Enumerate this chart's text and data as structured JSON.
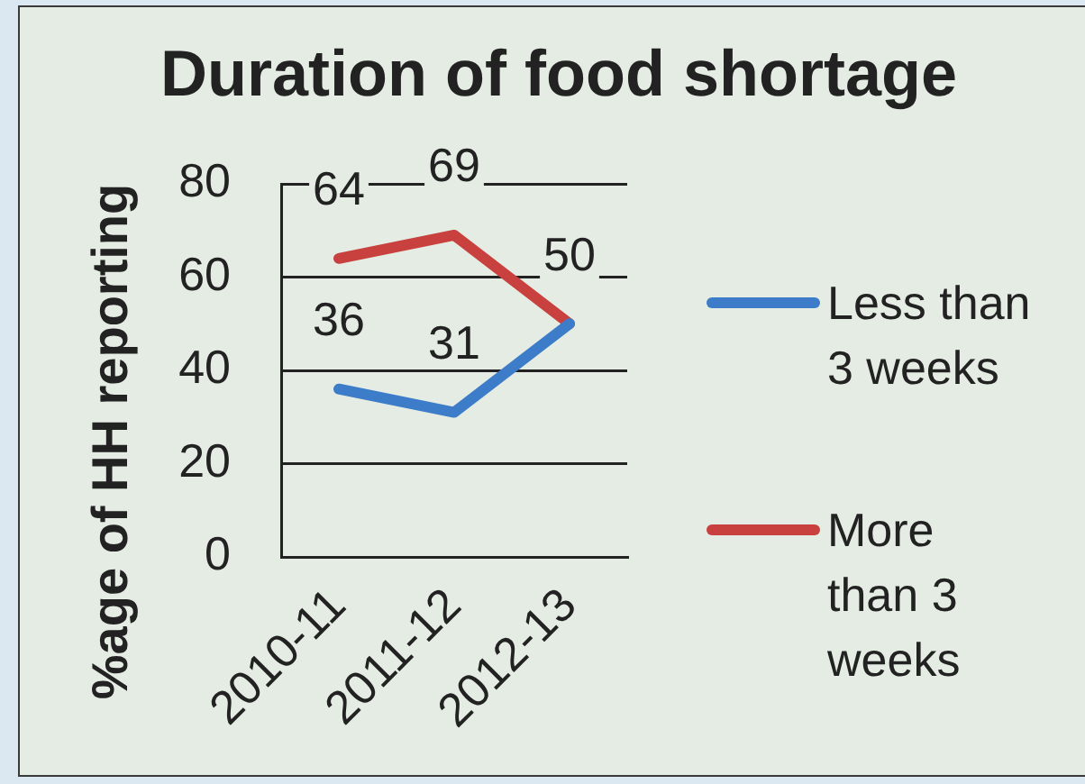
{
  "chart_data": {
    "type": "line",
    "title": "Duration of food shortage",
    "ylabel": "%age of HH reporting",
    "categories": [
      "2010-11",
      "2011-12",
      "2012-13"
    ],
    "series": [
      {
        "name": "Less than 3 weeks",
        "color": "#3d7cc9",
        "values": [
          36,
          31,
          50
        ],
        "value_labels": [
          "36",
          "31",
          null
        ]
      },
      {
        "name": "More than 3 weeks",
        "color": "#c8413e",
        "values": [
          64,
          69,
          50
        ],
        "value_labels": [
          "64",
          "69",
          "50"
        ]
      }
    ],
    "ylim": [
      0,
      80
    ],
    "yticks": [
      0,
      20,
      40,
      60,
      80
    ],
    "grid": "y",
    "legend": "right"
  }
}
